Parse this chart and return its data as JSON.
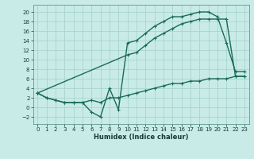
{
  "bg_color": "#c8ebe8",
  "grid_color": "#a8d4d0",
  "line_color": "#1a6b5a",
  "xlabel": "Humidex (Indice chaleur)",
  "xlim": [
    -0.5,
    23.5
  ],
  "ylim": [
    -3.5,
    21.5
  ],
  "yticks": [
    -2,
    0,
    2,
    4,
    6,
    8,
    10,
    12,
    14,
    16,
    18,
    20
  ],
  "xticks": [
    0,
    1,
    2,
    3,
    4,
    5,
    6,
    7,
    8,
    9,
    10,
    11,
    12,
    13,
    14,
    15,
    16,
    17,
    18,
    19,
    20,
    21,
    22,
    23
  ],
  "line1_x": [
    0,
    1,
    2,
    3,
    4,
    5,
    6,
    7,
    8,
    9,
    10,
    11,
    12,
    13,
    14,
    15,
    16,
    17,
    18,
    19,
    20,
    21,
    22,
    23
  ],
  "line1_y": [
    3.0,
    2.0,
    1.5,
    1.0,
    1.0,
    1.0,
    -1.0,
    -2.0,
    4.0,
    -0.5,
    13.5,
    14.0,
    15.5,
    17.0,
    18.0,
    19.0,
    19.0,
    19.5,
    20.0,
    20.0,
    19.0,
    13.5,
    7.5,
    7.5
  ],
  "line2_x": [
    0,
    10,
    11,
    12,
    13,
    14,
    15,
    16,
    17,
    18,
    19,
    20,
    21,
    22,
    23
  ],
  "line2_y": [
    3.0,
    11.0,
    11.5,
    13.0,
    14.5,
    15.5,
    16.5,
    17.5,
    18.0,
    18.5,
    18.5,
    18.5,
    18.5,
    6.5,
    6.5
  ],
  "line3_x": [
    0,
    1,
    2,
    3,
    4,
    5,
    6,
    7,
    8,
    9,
    10,
    11,
    12,
    13,
    14,
    15,
    16,
    17,
    18,
    19,
    20,
    21,
    22,
    23
  ],
  "line3_y": [
    3.0,
    2.0,
    1.5,
    1.0,
    1.0,
    1.0,
    1.5,
    1.0,
    2.0,
    2.0,
    2.5,
    3.0,
    3.5,
    4.0,
    4.5,
    5.0,
    5.0,
    5.5,
    5.5,
    6.0,
    6.0,
    6.0,
    6.5,
    6.5
  ],
  "tick_fontsize": 5,
  "xlabel_fontsize": 6,
  "lw": 1.0,
  "ms": 3
}
